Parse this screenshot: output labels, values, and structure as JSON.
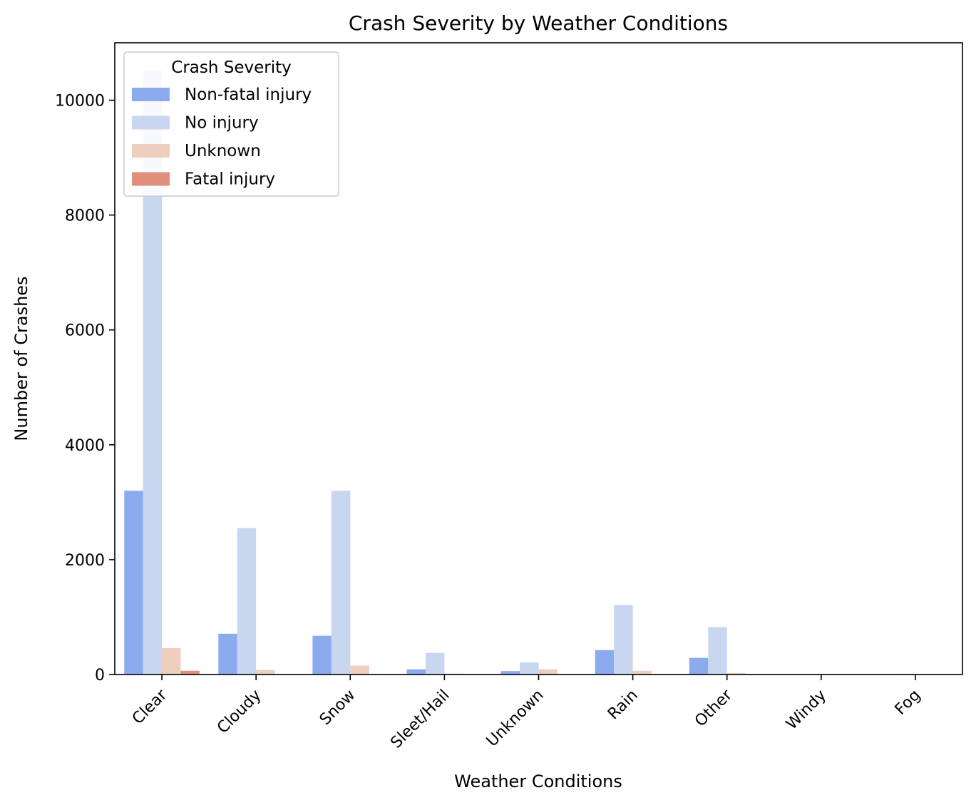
{
  "chart_data": {
    "type": "bar",
    "title": "Crash Severity by Weather Conditions",
    "xlabel": "Weather Conditions",
    "ylabel": "Number of Crashes",
    "categories": [
      "Clear",
      "Cloudy",
      "Snow",
      "Sleet/Hail",
      "Unknown",
      "Rain",
      "Other",
      "Windy",
      "Fog"
    ],
    "ylim": [
      0,
      11000
    ],
    "yticks": [
      0,
      2000,
      4000,
      6000,
      8000,
      10000
    ],
    "ytick_labels": [
      "0",
      "2000",
      "4000",
      "6000",
      "8000",
      "10000"
    ],
    "grid": false,
    "legend": {
      "title": "Crash Severity",
      "placement": "top-left"
    },
    "series": [
      {
        "name": "Non-fatal injury",
        "color": "#8caaee",
        "values": [
          3200,
          710,
          675,
          90,
          60,
          425,
          290,
          2,
          5
        ]
      },
      {
        "name": "No injury",
        "color": "#c8d6f0",
        "values": [
          10520,
          2550,
          3200,
          375,
          210,
          1210,
          825,
          5,
          10
        ]
      },
      {
        "name": "Unknown",
        "color": "#eecebe",
        "values": [
          460,
          80,
          155,
          15,
          90,
          65,
          25,
          1,
          2
        ]
      },
      {
        "name": "Fatal injury",
        "color": "#e0907a",
        "values": [
          65,
          2,
          5,
          2,
          3,
          2,
          2,
          0,
          1
        ]
      }
    ]
  }
}
